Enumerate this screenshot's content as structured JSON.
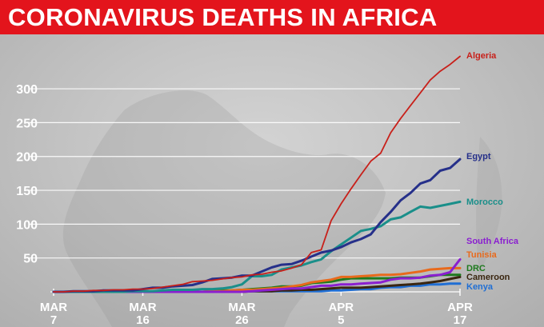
{
  "title": "CORONAVIRUS DEATHS IN AFRICA",
  "colors": {
    "header_bg": "#e3141c",
    "title_text": "#ffffff",
    "grid": "#ffffff",
    "axis_text": "#ffffff"
  },
  "chart_data": {
    "type": "line",
    "title": "CORONAVIRUS DEATHS IN AFRICA",
    "xlabel": "",
    "ylabel": "",
    "x": [
      "2020-03-07",
      "2020-03-08",
      "2020-03-09",
      "2020-03-10",
      "2020-03-11",
      "2020-03-12",
      "2020-03-13",
      "2020-03-14",
      "2020-03-15",
      "2020-03-16",
      "2020-03-17",
      "2020-03-18",
      "2020-03-19",
      "2020-03-20",
      "2020-03-21",
      "2020-03-22",
      "2020-03-23",
      "2020-03-24",
      "2020-03-25",
      "2020-03-26",
      "2020-03-27",
      "2020-03-28",
      "2020-03-29",
      "2020-03-30",
      "2020-03-31",
      "2020-04-01",
      "2020-04-02",
      "2020-04-03",
      "2020-04-04",
      "2020-04-05",
      "2020-04-06",
      "2020-04-07",
      "2020-04-08",
      "2020-04-09",
      "2020-04-10",
      "2020-04-11",
      "2020-04-12",
      "2020-04-13",
      "2020-04-14",
      "2020-04-15",
      "2020-04-16",
      "2020-04-17"
    ],
    "x_ticks": [
      {
        "date": "2020-03-07",
        "month": "MAR",
        "day": "7"
      },
      {
        "date": "2020-03-16",
        "month": "MAR",
        "day": "16"
      },
      {
        "date": "2020-03-26",
        "month": "MAR",
        "day": "26"
      },
      {
        "date": "2020-04-05",
        "month": "APR",
        "day": "5"
      },
      {
        "date": "2020-04-17",
        "month": "APR",
        "day": "17"
      }
    ],
    "y_ticks": [
      50,
      100,
      150,
      200,
      250,
      300
    ],
    "ylim": [
      0,
      360
    ],
    "grid": true,
    "legend": "labels at line ends (right)",
    "series": [
      {
        "name": "Kenya",
        "color": "#1f6ed4",
        "values": [
          0,
          0,
          0,
          0,
          0,
          0,
          0,
          0,
          0,
          0,
          0,
          0,
          0,
          0,
          0,
          0,
          0,
          0,
          0,
          1,
          1,
          1,
          1,
          1,
          1,
          1,
          1,
          1,
          2,
          2,
          3,
          4,
          4,
          6,
          7,
          7,
          9,
          9,
          11,
          11,
          12,
          12
        ]
      },
      {
        "name": "Cameroon",
        "color": "#3a2610",
        "values": [
          0,
          0,
          0,
          0,
          0,
          0,
          0,
          0,
          0,
          0,
          0,
          0,
          0,
          0,
          0,
          0,
          0,
          0,
          0,
          0,
          1,
          1,
          1,
          2,
          2,
          3,
          3,
          4,
          5,
          6,
          6,
          6,
          7,
          8,
          9,
          10,
          11,
          12,
          14,
          16,
          19,
          22
        ]
      },
      {
        "name": "DRC",
        "color": "#1e7a1e",
        "values": [
          0,
          0,
          0,
          0,
          0,
          0,
          0,
          0,
          0,
          0,
          0,
          0,
          0,
          0,
          0,
          0,
          1,
          2,
          2,
          3,
          4,
          5,
          6,
          8,
          8,
          9,
          13,
          14,
          15,
          18,
          20,
          20,
          20,
          20,
          20,
          21,
          21,
          21,
          23,
          25,
          25,
          25
        ]
      },
      {
        "name": "Tunisia",
        "color": "#e86a1c",
        "values": [
          0,
          0,
          0,
          0,
          0,
          0,
          0,
          0,
          0,
          0,
          0,
          0,
          0,
          0,
          0,
          0,
          1,
          1,
          2,
          3,
          3,
          4,
          5,
          6,
          8,
          10,
          14,
          16,
          18,
          22,
          22,
          23,
          24,
          25,
          25,
          26,
          28,
          30,
          33,
          34,
          35,
          35
        ]
      },
      {
        "name": "South Africa",
        "color": "#8a1fd0",
        "values": [
          0,
          0,
          0,
          0,
          0,
          0,
          0,
          0,
          0,
          0,
          0,
          0,
          0,
          0,
          0,
          0,
          0,
          0,
          0,
          0,
          1,
          2,
          3,
          4,
          5,
          5,
          7,
          9,
          9,
          11,
          11,
          12,
          13,
          14,
          18,
          20,
          20,
          21,
          24,
          25,
          29,
          48
        ]
      },
      {
        "name": "Morocco",
        "color": "#1a8f8a",
        "values": [
          0,
          0,
          0,
          0,
          0,
          0,
          0,
          0,
          1,
          1,
          1,
          2,
          3,
          3,
          3,
          4,
          4,
          5,
          7,
          11,
          23,
          23,
          25,
          33,
          36,
          39,
          44,
          48,
          60,
          70,
          80,
          90,
          93,
          97,
          107,
          110,
          118,
          126,
          124,
          127,
          130,
          133
        ]
      },
      {
        "name": "Egypt",
        "color": "#26308a",
        "values": [
          0,
          0,
          1,
          1,
          1,
          2,
          2,
          2,
          2,
          4,
          6,
          6,
          8,
          9,
          10,
          14,
          19,
          20,
          21,
          24,
          24,
          30,
          36,
          40,
          41,
          46,
          52,
          58,
          61,
          66,
          73,
          78,
          85,
          103,
          118,
          135,
          146,
          160,
          165,
          179,
          183,
          196
        ]
      },
      {
        "name": "Algeria",
        "color": "#c8201a",
        "values": [
          0,
          0,
          1,
          1,
          2,
          2,
          3,
          3,
          4,
          4,
          5,
          7,
          9,
          11,
          15,
          16,
          17,
          19,
          21,
          22,
          25,
          26,
          29,
          31,
          35,
          40,
          58,
          62,
          105,
          130,
          152,
          173,
          193,
          205,
          235,
          256,
          275,
          294,
          313,
          326,
          336,
          348
        ]
      }
    ]
  }
}
